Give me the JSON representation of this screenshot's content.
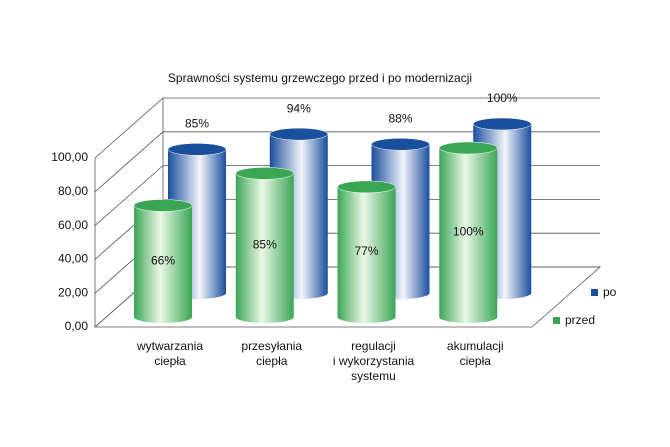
{
  "chart_data": {
    "type": "cylinder-bar",
    "title": "Sprawności systemu grzewczego przed i po modernizacji",
    "categories": [
      "wytwarzania\nciepła",
      "przesyłania\nciepła",
      "regulacji\ni wykorzystania\nsystemu",
      "akumulacji\nciepła"
    ],
    "series": [
      {
        "name": "przed",
        "color": "#3aa655",
        "values": [
          66,
          85,
          77,
          100
        ],
        "value_labels": [
          "66%",
          "85%",
          "77%",
          "100%"
        ]
      },
      {
        "name": "po",
        "color": "#1a4f9e",
        "values": [
          85,
          94,
          88,
          100
        ],
        "value_labels": [
          "85%",
          "94%",
          "88%",
          "100%"
        ]
      }
    ],
    "ylim": [
      0,
      100
    ],
    "yticks": [
      {
        "value": 0,
        "label": "0,00"
      },
      {
        "value": 20,
        "label": "20,00"
      },
      {
        "value": 40,
        "label": "40,00"
      },
      {
        "value": 60,
        "label": "60,00"
      },
      {
        "value": 80,
        "label": "80,00"
      },
      {
        "value": 100,
        "label": "100,00"
      }
    ],
    "grid": true
  }
}
